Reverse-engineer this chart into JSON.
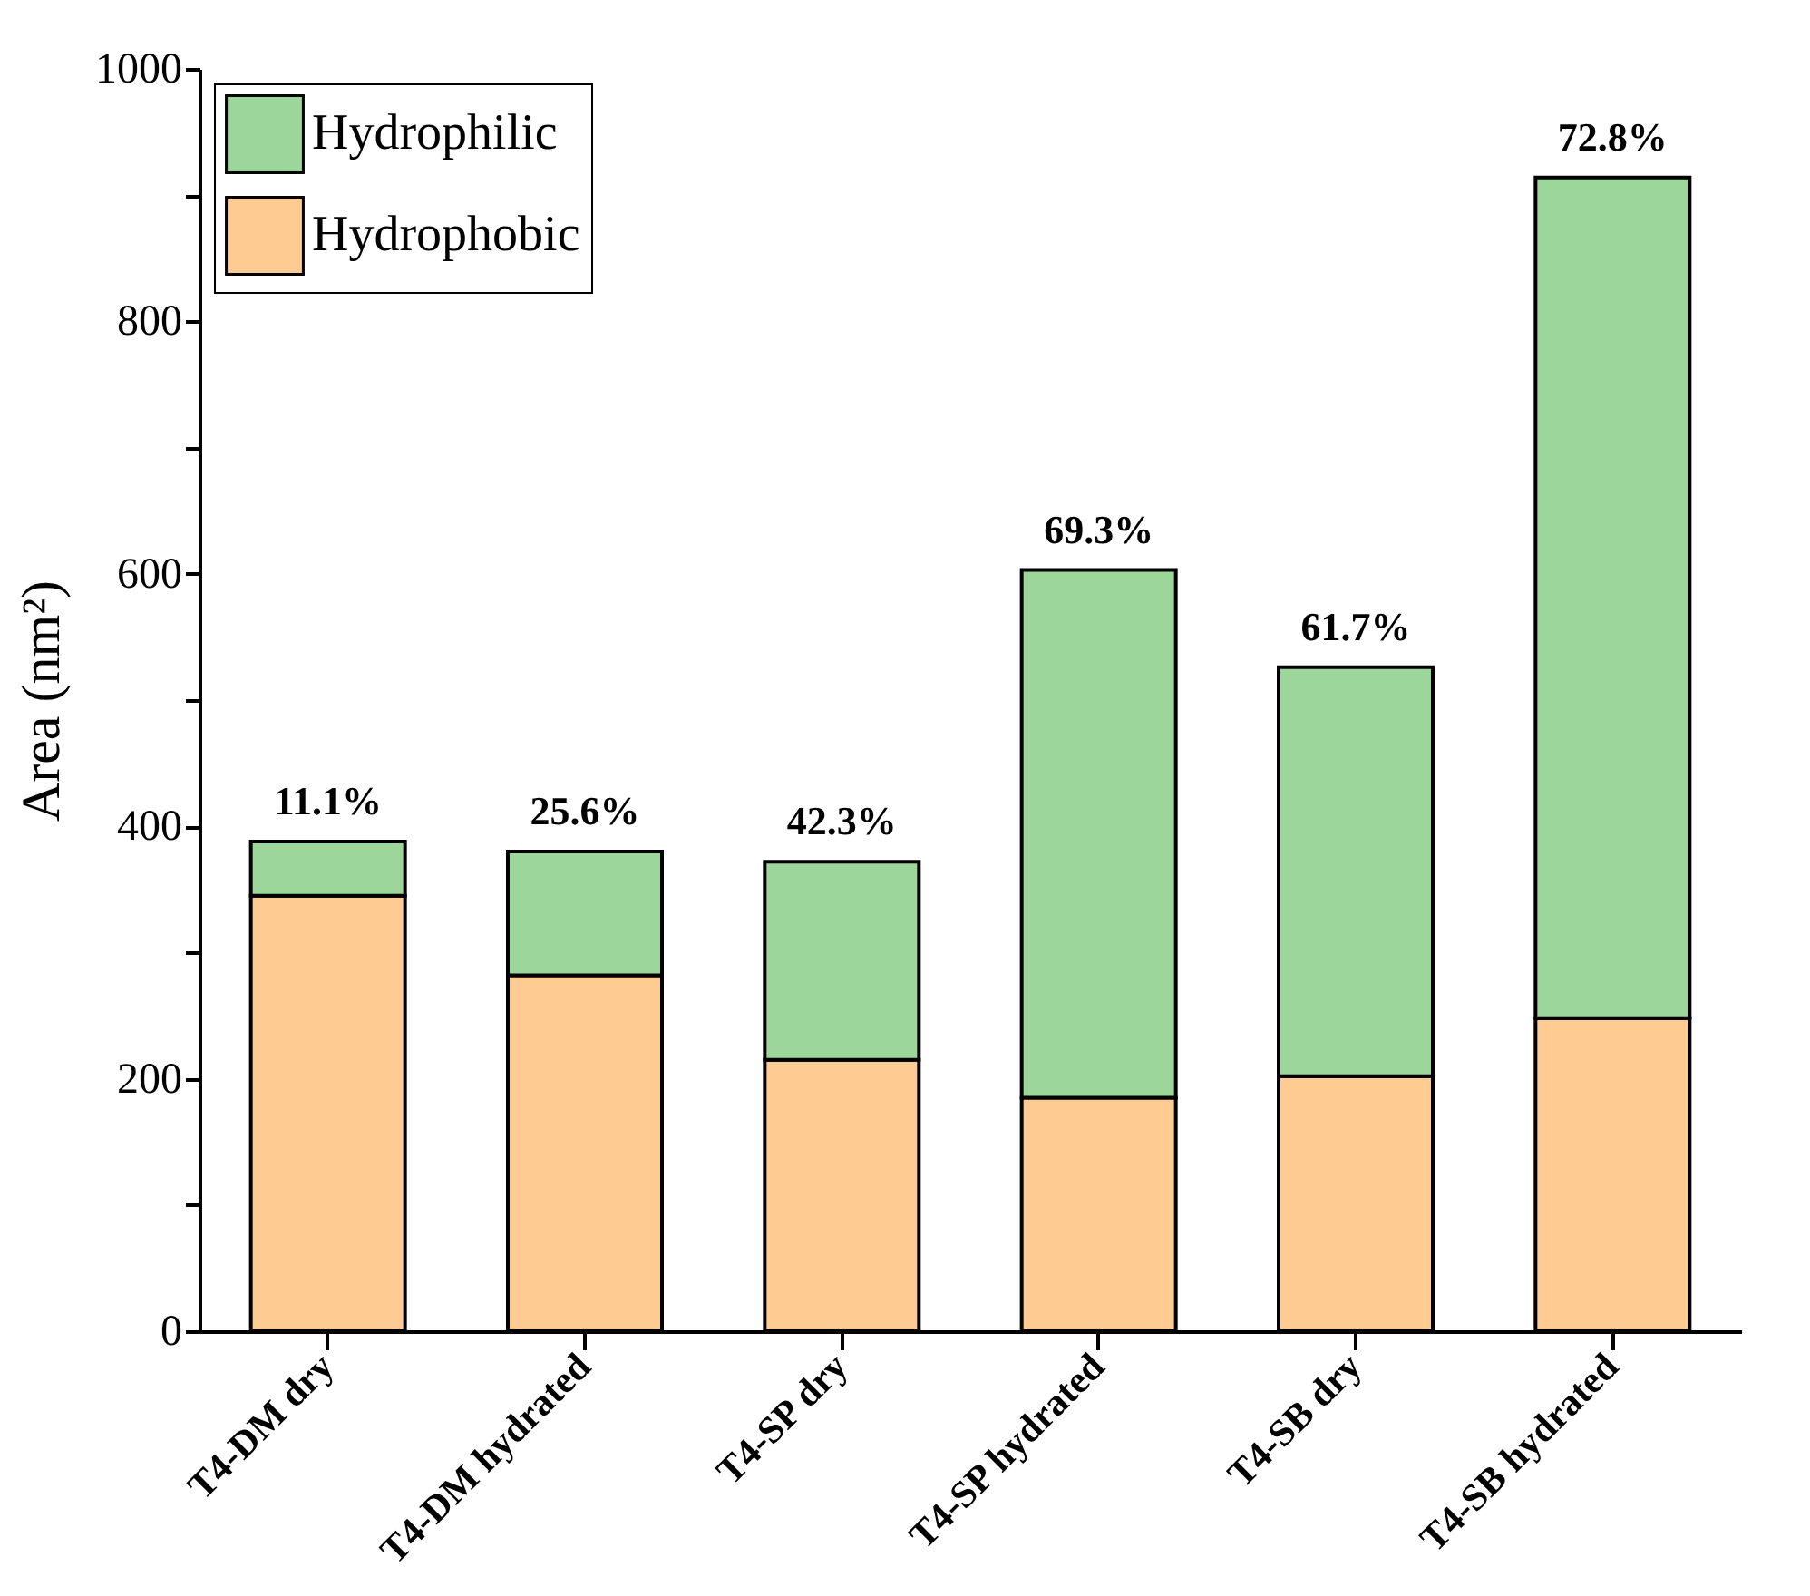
{
  "chart_data": {
    "type": "bar",
    "stacked": true,
    "ylabel": "Area (nm²)",
    "categories": [
      "T4-DM dry",
      "T4-DM hydrated",
      "T4-SP dry",
      "T4-SP hydrated",
      "T4-SB dry",
      "T4-SB hydrated"
    ],
    "series": [
      {
        "name": "Hydrophobic",
        "color": "#fecc92",
        "values": [
          345,
          282,
          215,
          185,
          202,
          248
        ]
      },
      {
        "name": "Hydrophilic",
        "color": "#9dd69b",
        "values": [
          43,
          98,
          157,
          418,
          324,
          666
        ]
      }
    ],
    "ylim": [
      0,
      1000
    ],
    "yticks": [
      0,
      {
        "value": 100,
        "label": null
      },
      200,
      {
        "value": 300,
        "label": null
      },
      400,
      {
        "value": 500,
        "label": null
      },
      600,
      {
        "value": 700,
        "label": null
      },
      800,
      {
        "value": 900,
        "label": null
      },
      1000
    ],
    "annotations": [
      {
        "text": "11.1%",
        "x": "T4-DM dry",
        "y": 388
      },
      {
        "text": "25.6%",
        "x": "T4-DM hydrated",
        "y": 380
      },
      {
        "text": "42.3%",
        "x": "T4-SP dry",
        "y": 372
      },
      {
        "text": "69.3%",
        "x": "T4-SP hydrated",
        "y": 603
      },
      {
        "text": "61.7%",
        "x": "T4-SB dry",
        "y": 526
      },
      {
        "text": "72.8%",
        "x": "T4-SB hydrated",
        "y": 914
      }
    ],
    "legend": "top left",
    "grid": false
  }
}
